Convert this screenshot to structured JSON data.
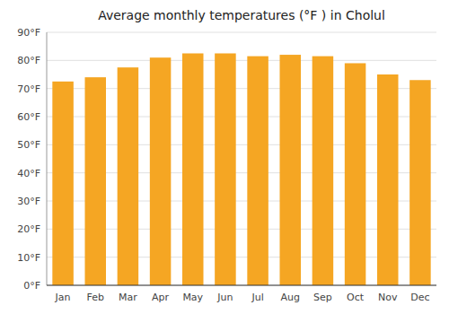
{
  "chart_data": {
    "type": "bar",
    "title": "Average monthly temperatures (°F ) in Cholul",
    "categories": [
      "Jan",
      "Feb",
      "Mar",
      "Apr",
      "May",
      "Jun",
      "Jul",
      "Aug",
      "Sep",
      "Oct",
      "Nov",
      "Dec"
    ],
    "values": [
      72.5,
      74.0,
      77.5,
      81.0,
      82.5,
      82.5,
      81.5,
      82.0,
      81.5,
      79.0,
      75.0,
      73.0
    ],
    "color": "#F5A623",
    "ylim": [
      0,
      90
    ],
    "yticks": [
      {
        "value": 0,
        "label": "0°F"
      },
      {
        "value": 10,
        "label": "10°F"
      },
      {
        "value": 20,
        "label": "20°F"
      },
      {
        "value": 30,
        "label": "30°F"
      },
      {
        "value": 40,
        "label": "40°F"
      },
      {
        "value": 50,
        "label": "50°F"
      },
      {
        "value": 60,
        "label": "60°F"
      },
      {
        "value": 70,
        "label": "70°F"
      },
      {
        "value": 80,
        "label": "80°F"
      },
      {
        "value": 90,
        "label": "90°F"
      }
    ],
    "grid": true
  }
}
